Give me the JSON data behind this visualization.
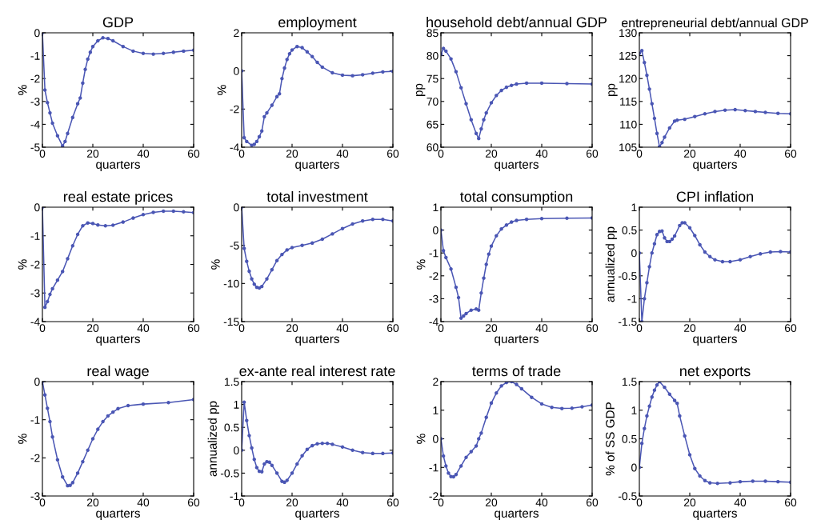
{
  "chart_data": [
    {
      "type": "line",
      "title": "GDP",
      "xlabel": "quarters",
      "ylabel": "%",
      "xlim": [
        0,
        60
      ],
      "xticks": [
        0,
        20,
        40,
        60
      ],
      "ylim": [
        -5,
        0
      ],
      "yticks": [
        -5,
        -4,
        -3,
        -2,
        -1,
        0
      ],
      "marker": "circle",
      "grid": false,
      "series": [
        {
          "color": "#4a56b4",
          "x": [
            0,
            1,
            2,
            3,
            4,
            6,
            8,
            9,
            10,
            12,
            14,
            15,
            16,
            17,
            18,
            19,
            20,
            22,
            24,
            26,
            28,
            32,
            36,
            40,
            44,
            48,
            52,
            56,
            60
          ],
          "values": [
            0,
            -2.5,
            -3.05,
            -3.5,
            -3.95,
            -4.5,
            -4.95,
            -4.75,
            -4.4,
            -3.7,
            -3.1,
            -2.85,
            -2.2,
            -1.6,
            -1.15,
            -0.85,
            -0.6,
            -0.35,
            -0.22,
            -0.25,
            -0.35,
            -0.6,
            -0.8,
            -0.9,
            -0.93,
            -0.9,
            -0.85,
            -0.8,
            -0.76
          ]
        }
      ]
    },
    {
      "type": "line",
      "title": "employment",
      "xlabel": "quarters",
      "ylabel": "%",
      "xlim": [
        0,
        60
      ],
      "xticks": [
        0,
        20,
        40,
        60
      ],
      "ylim": [
        -4,
        2
      ],
      "yticks": [
        -4,
        -2,
        0,
        2
      ],
      "marker": "circle",
      "grid": false,
      "series": [
        {
          "color": "#4a56b4",
          "x": [
            0,
            1,
            2,
            4,
            5,
            6,
            7,
            8,
            9,
            10,
            12,
            14,
            15,
            16,
            17,
            18,
            19,
            20,
            22,
            24,
            26,
            28,
            30,
            32,
            36,
            40,
            44,
            48,
            52,
            56,
            60
          ],
          "values": [
            0,
            -3.5,
            -3.7,
            -3.9,
            -3.85,
            -3.7,
            -3.45,
            -3.15,
            -2.4,
            -2.2,
            -1.8,
            -1.35,
            -1.2,
            -0.4,
            0.15,
            0.6,
            0.9,
            1.1,
            1.28,
            1.22,
            1.0,
            0.75,
            0.45,
            0.2,
            -0.1,
            -0.22,
            -0.25,
            -0.2,
            -0.12,
            -0.05,
            -0.02
          ]
        }
      ]
    },
    {
      "type": "line",
      "title": "household debt/annual GDP",
      "xlabel": "quarters",
      "ylabel": "pp",
      "xlim": [
        0,
        60
      ],
      "xticks": [
        0,
        20,
        40,
        60
      ],
      "ylim": [
        60,
        85
      ],
      "yticks": [
        60,
        65,
        70,
        75,
        80,
        85
      ],
      "marker": "circle",
      "grid": false,
      "series": [
        {
          "color": "#4a56b4",
          "x": [
            0,
            1,
            2,
            4,
            6,
            8,
            10,
            12,
            14,
            15,
            16,
            17,
            18,
            20,
            22,
            24,
            26,
            28,
            30,
            34,
            40,
            50,
            60
          ],
          "values": [
            80.3,
            81.6,
            81,
            79.3,
            76.5,
            73,
            69.5,
            66,
            63,
            61.9,
            64,
            66,
            67.5,
            69.7,
            71.3,
            72.4,
            73.1,
            73.5,
            73.8,
            74,
            74,
            73.9,
            73.8
          ]
        }
      ]
    },
    {
      "type": "line",
      "title": "entrepreneurial debt/annual GDP",
      "xlabel": "quarters",
      "ylabel": "pp",
      "xlim": [
        0,
        60
      ],
      "xticks": [
        0,
        20,
        40,
        60
      ],
      "ylim": [
        105,
        130
      ],
      "yticks": [
        105,
        110,
        115,
        120,
        125,
        130
      ],
      "marker": "circle",
      "grid": false,
      "series": [
        {
          "color": "#4a56b4",
          "x": [
            0,
            1,
            2,
            3,
            4,
            5,
            6,
            7,
            8,
            9,
            10,
            12,
            14,
            15,
            18,
            22,
            26,
            30,
            34,
            38,
            42,
            46,
            50,
            55,
            60
          ],
          "values": [
            125.5,
            126.1,
            123.5,
            120.7,
            117.7,
            114.5,
            111.3,
            108,
            105.1,
            106,
            107.2,
            109.2,
            110.7,
            110.9,
            111.1,
            111.7,
            112.3,
            112.8,
            113.1,
            113.2,
            113,
            112.8,
            112.6,
            112.4,
            112.3
          ]
        }
      ]
    },
    {
      "type": "line",
      "title": "real estate prices",
      "xlabel": "quarters",
      "ylabel": "%",
      "xlim": [
        0,
        60
      ],
      "xticks": [
        0,
        20,
        40,
        60
      ],
      "ylim": [
        -4,
        0
      ],
      "yticks": [
        -4,
        -3,
        -2,
        -1,
        0
      ],
      "marker": "circle",
      "grid": false,
      "series": [
        {
          "color": "#4a56b4",
          "x": [
            0,
            1,
            2,
            3,
            4,
            6,
            8,
            10,
            12,
            14,
            16,
            18,
            20,
            22,
            25,
            28,
            32,
            36,
            40,
            44,
            48,
            52,
            56,
            60
          ],
          "values": [
            0,
            -3.5,
            -3.3,
            -3.05,
            -2.85,
            -2.55,
            -2.25,
            -1.8,
            -1.35,
            -0.95,
            -0.65,
            -0.55,
            -0.57,
            -0.62,
            -0.65,
            -0.63,
            -0.52,
            -0.38,
            -0.26,
            -0.18,
            -0.14,
            -0.14,
            -0.16,
            -0.19
          ]
        }
      ]
    },
    {
      "type": "line",
      "title": "total investment",
      "xlabel": "quarters",
      "ylabel": "%",
      "xlim": [
        0,
        60
      ],
      "xticks": [
        0,
        20,
        40,
        60
      ],
      "ylim": [
        -15,
        0
      ],
      "yticks": [
        -15,
        -10,
        -5,
        0
      ],
      "marker": "circle",
      "grid": false,
      "series": [
        {
          "color": "#4a56b4",
          "x": [
            0,
            1,
            2,
            3,
            4,
            5,
            6,
            7,
            8,
            10,
            12,
            14,
            16,
            18,
            20,
            24,
            28,
            32,
            36,
            40,
            44,
            48,
            52,
            56,
            60
          ],
          "values": [
            0,
            -5.4,
            -7.1,
            -8.4,
            -9.4,
            -10.1,
            -10.5,
            -10.6,
            -10.4,
            -9.4,
            -8.2,
            -7,
            -6.2,
            -5.6,
            -5.3,
            -5,
            -4.7,
            -4.2,
            -3.5,
            -2.8,
            -2.2,
            -1.8,
            -1.6,
            -1.6,
            -1.8
          ]
        }
      ]
    },
    {
      "type": "line",
      "title": "total consumption",
      "xlabel": "quarters",
      "ylabel": "%",
      "xlim": [
        0,
        60
      ],
      "xticks": [
        0,
        20,
        40,
        60
      ],
      "ylim": [
        -4,
        1
      ],
      "yticks": [
        -4,
        -3,
        -2,
        -1,
        0,
        1
      ],
      "marker": "circle",
      "grid": false,
      "series": [
        {
          "color": "#4a56b4",
          "x": [
            0,
            1,
            2,
            4,
            6,
            7,
            8,
            9,
            10,
            12,
            14,
            15,
            16,
            17,
            18,
            19,
            20,
            22,
            24,
            26,
            28,
            30,
            34,
            40,
            50,
            60
          ],
          "values": [
            0,
            -0.9,
            -1.2,
            -1.7,
            -2.5,
            -2.95,
            -3.85,
            -3.75,
            -3.65,
            -3.5,
            -3.45,
            -3.5,
            -2.75,
            -2.1,
            -1.5,
            -1.05,
            -0.7,
            -0.25,
            0.05,
            0.22,
            0.35,
            0.42,
            0.47,
            0.5,
            0.52,
            0.53
          ]
        }
      ]
    },
    {
      "type": "line",
      "title": "CPI inflation",
      "xlabel": "quarters",
      "ylabel": "annualized pp",
      "xlim": [
        0,
        60
      ],
      "xticks": [
        0,
        20,
        40,
        60
      ],
      "ylim": [
        -1.5,
        1
      ],
      "yticks": [
        -1.5,
        -1,
        -0.5,
        0,
        0.5,
        1
      ],
      "marker": "circle",
      "grid": false,
      "series": [
        {
          "color": "#4a56b4",
          "x": [
            0,
            1,
            2,
            3,
            4,
            5,
            6,
            7,
            8,
            9,
            10,
            11,
            12,
            13,
            14,
            16,
            17,
            18,
            20,
            22,
            24,
            26,
            28,
            30,
            33,
            36,
            40,
            44,
            48,
            52,
            56,
            60
          ],
          "values": [
            0,
            -1.5,
            -1.0,
            -0.65,
            -0.3,
            0,
            0.2,
            0.4,
            0.47,
            0.48,
            0.33,
            0.25,
            0.25,
            0.3,
            0.37,
            0.6,
            0.66,
            0.66,
            0.55,
            0.38,
            0.18,
            0.02,
            -0.08,
            -0.15,
            -0.19,
            -0.19,
            -0.15,
            -0.08,
            -0.02,
            0.02,
            0.03,
            0.02
          ]
        }
      ]
    },
    {
      "type": "line",
      "title": "real wage",
      "xlabel": "quarters",
      "ylabel": "%",
      "xlim": [
        0,
        60
      ],
      "xticks": [
        0,
        20,
        40,
        60
      ],
      "ylim": [
        -3,
        0
      ],
      "yticks": [
        -3,
        -2,
        -1,
        0
      ],
      "marker": "circle",
      "grid": false,
      "series": [
        {
          "color": "#4a56b4",
          "x": [
            0,
            1,
            2,
            3,
            4,
            6,
            8,
            10,
            11,
            12,
            14,
            16,
            18,
            20,
            22,
            24,
            26,
            28,
            30,
            34,
            40,
            50,
            60
          ],
          "values": [
            0,
            -0.35,
            -0.7,
            -1.05,
            -1.45,
            -2.05,
            -2.5,
            -2.73,
            -2.72,
            -2.65,
            -2.4,
            -2.1,
            -1.8,
            -1.5,
            -1.25,
            -1.05,
            -0.9,
            -0.8,
            -0.71,
            -0.63,
            -0.59,
            -0.55,
            -0.47
          ]
        }
      ]
    },
    {
      "type": "line",
      "title": "ex-ante real interest rate",
      "xlabel": "quarters",
      "ylabel": "annualized pp",
      "xlim": [
        0,
        60
      ],
      "xticks": [
        0,
        20,
        40,
        60
      ],
      "ylim": [
        -1,
        1.5
      ],
      "yticks": [
        -1,
        -0.5,
        0,
        0.5,
        1,
        1.5
      ],
      "marker": "circle",
      "grid": false,
      "series": [
        {
          "color": "#4a56b4",
          "x": [
            0,
            1,
            2,
            3,
            4,
            5,
            6,
            7,
            8,
            9,
            10,
            11,
            12,
            14,
            16,
            17,
            18,
            20,
            22,
            24,
            26,
            28,
            30,
            32,
            34,
            36,
            40,
            44,
            48,
            52,
            56,
            60
          ],
          "values": [
            0,
            1.05,
            0.65,
            0.32,
            0.05,
            -0.2,
            -0.38,
            -0.46,
            -0.47,
            -0.3,
            -0.25,
            -0.26,
            -0.33,
            -0.5,
            -0.68,
            -0.7,
            -0.66,
            -0.5,
            -0.3,
            -0.12,
            0.02,
            0.1,
            0.14,
            0.15,
            0.15,
            0.13,
            0.07,
            0.0,
            -0.05,
            -0.07,
            -0.07,
            -0.06
          ]
        }
      ]
    },
    {
      "type": "line",
      "title": "terms of trade",
      "xlabel": "quarters",
      "ylabel": "%",
      "xlim": [
        0,
        60
      ],
      "xticks": [
        0,
        20,
        40,
        60
      ],
      "ylim": [
        -2,
        2
      ],
      "yticks": [
        -2,
        -1,
        0,
        1,
        2
      ],
      "marker": "circle",
      "grid": false,
      "series": [
        {
          "color": "#4a56b4",
          "x": [
            0,
            1,
            2,
            3,
            4,
            5,
            6,
            8,
            10,
            12,
            14,
            15,
            16,
            18,
            20,
            22,
            24,
            26,
            28,
            30,
            32,
            36,
            40,
            44,
            48,
            52,
            56,
            60
          ],
          "values": [
            0,
            -0.6,
            -0.95,
            -1.2,
            -1.32,
            -1.33,
            -1.25,
            -0.95,
            -0.65,
            -0.45,
            -0.25,
            0,
            0.2,
            0.75,
            1.25,
            1.6,
            1.85,
            1.97,
            2.0,
            1.9,
            1.75,
            1.45,
            1.22,
            1.1,
            1.06,
            1.07,
            1.12,
            1.18
          ]
        }
      ]
    },
    {
      "type": "line",
      "title": "net exports",
      "xlabel": "quarters",
      "ylabel": "% of SS GDP",
      "xlim": [
        0,
        60
      ],
      "xticks": [
        0,
        20,
        40,
        60
      ],
      "ylim": [
        -0.5,
        1.5
      ],
      "yticks": [
        -0.5,
        0,
        0.5,
        1,
        1.5
      ],
      "marker": "circle",
      "grid": false,
      "series": [
        {
          "color": "#4a56b4",
          "x": [
            0,
            1,
            2,
            3,
            4,
            5,
            6,
            7,
            8,
            10,
            12,
            14,
            15,
            16,
            18,
            20,
            22,
            24,
            26,
            28,
            31,
            36,
            40,
            45,
            50,
            55,
            60
          ],
          "values": [
            0,
            0.42,
            0.68,
            0.9,
            1.07,
            1.23,
            1.35,
            1.44,
            1.5,
            1.4,
            1.28,
            1.17,
            1.12,
            0.9,
            0.55,
            0.22,
            -0.02,
            -0.15,
            -0.23,
            -0.27,
            -0.28,
            -0.27,
            -0.25,
            -0.24,
            -0.24,
            -0.25,
            -0.26
          ]
        }
      ]
    }
  ]
}
